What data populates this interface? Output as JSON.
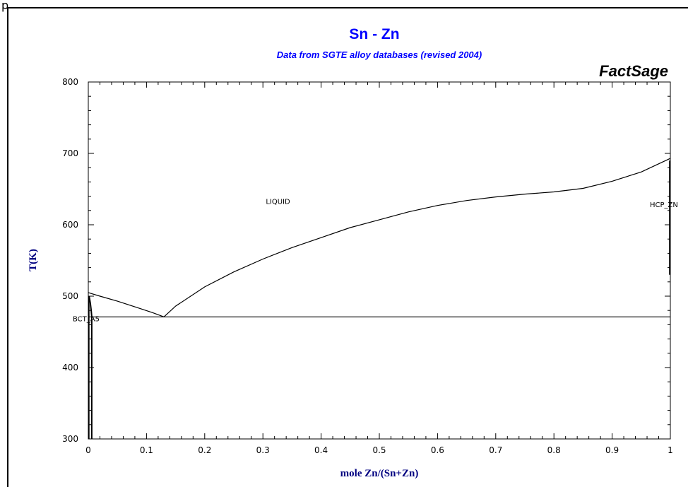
{
  "page_label": "p",
  "colors": {
    "title": "#0000ff",
    "axis_label": "#000080",
    "curve": "#000000"
  },
  "brand": "FactSage",
  "chart_data": {
    "type": "line",
    "title": "Sn - Zn",
    "subtitle": "Data from SGTE alloy databases (revised 2004)",
    "xlabel": "mole Zn/(Sn+Zn)",
    "ylabel": "T(K)",
    "xlim": [
      0,
      1
    ],
    "ylim": [
      300,
      800
    ],
    "x_ticks": [
      "0",
      "0.1",
      "0.2",
      "0.3",
      "0.4",
      "0.5",
      "0.6",
      "0.7",
      "0.8",
      "0.9",
      "1"
    ],
    "y_ticks": [
      "300",
      "400",
      "500",
      "600",
      "700",
      "800"
    ],
    "grid": false,
    "region_labels": [
      {
        "text": "LIQUID",
        "x": 0.305,
        "y": 629
      },
      {
        "text": "BCT_A5",
        "x": 0.003,
        "y": 465
      },
      {
        "text": "HCP_ZN",
        "x": 0.985,
        "y": 625
      }
    ],
    "series": [
      {
        "x": [
          0,
          0.02,
          0.05,
          0.08,
          0.11,
          0.13
        ],
        "y": [
          505,
          500,
          493,
          485,
          477,
          471
        ]
      },
      {
        "x": [
          0.13,
          0.15,
          0.2,
          0.25,
          0.3,
          0.35,
          0.4,
          0.45,
          0.5,
          0.55,
          0.6,
          0.65,
          0.7,
          0.75,
          0.8,
          0.85,
          0.9,
          0.95,
          1.0
        ],
        "y": [
          471,
          486,
          513,
          534,
          552,
          568,
          582,
          596,
          607,
          618,
          627,
          634,
          639,
          643,
          646,
          651,
          661,
          674,
          693
        ]
      },
      {
        "x": [
          0,
          1
        ],
        "y": [
          471,
          471
        ]
      },
      {
        "x": [
          0.0015,
          0.0035,
          0.005,
          0.006,
          0.006
        ],
        "y": [
          500,
          490,
          480,
          471,
          300
        ]
      },
      {
        "x": [
          0.0008,
          0.0008
        ],
        "y": [
          300,
          500
        ]
      },
      {
        "x": [
          0.999,
          0.999
        ],
        "y": [
          530,
          690
        ]
      }
    ]
  }
}
